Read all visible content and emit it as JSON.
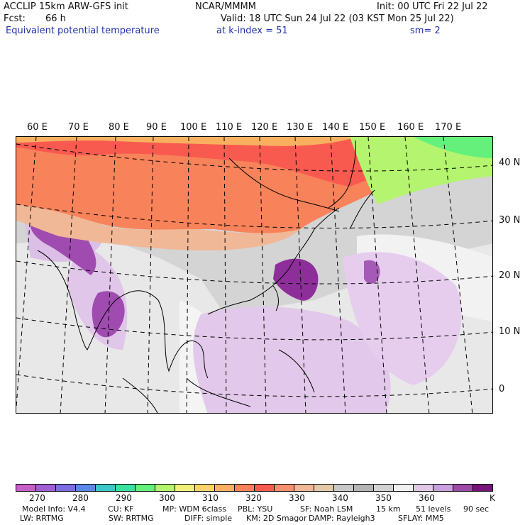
{
  "header": {
    "model": "ACCLIP 15km ARW-GFS init",
    "org": "NCAR/MMMM",
    "init": "Init: 00 UTC Fri 22 Jul 22",
    "fcst_label": "Fcst:",
    "fcst_value": "66 h",
    "valid": "Valid: 18 UTC Sun 24 Jul 22 (03 KST Mon 25 Jul 22)",
    "field": "Equivalent potential temperature",
    "level": "at k-index =  51",
    "smoothing": "sm= 2"
  },
  "map": {
    "lon_labels": [
      "60 E",
      "70 E",
      "80 E",
      "90 E",
      "100 E",
      "110 E",
      "120 E",
      "130 E",
      "140 E",
      "150 E",
      "160 E",
      "170 E"
    ],
    "lat_labels": [
      "40 N",
      "30 N",
      "20 N",
      "10 N",
      "0"
    ]
  },
  "colorbar": {
    "colors": [
      "#c85fc8",
      "#a05fd2",
      "#7b6ee0",
      "#5a88e8",
      "#3cc6c6",
      "#3ce0a0",
      "#64f07a",
      "#b4f46e",
      "#f0f07a",
      "#f8d26e",
      "#f8b060",
      "#f8825a",
      "#f85a50",
      "#f8906e",
      "#f0b896",
      "#e4c8aa",
      "#c8c8c8",
      "#b4b4b4",
      "#d2d2d2",
      "#f0f0f0",
      "#e0c8e6",
      "#c8a0dc",
      "#9b4aa8",
      "#78147a"
    ],
    "tick_labels": [
      "270",
      "280",
      "290",
      "300",
      "310",
      "320",
      "330",
      "340",
      "350",
      "360"
    ],
    "unit": "K"
  },
  "model_info": {
    "row1": [
      "Model Info: V4.4",
      "CU: KF",
      "MP: WDM 6class",
      "PBL: YSU",
      "SF: Noah LSM",
      "15 km",
      "51 levels",
      "90 sec"
    ],
    "row2": [
      "LW: RRTMG",
      "SW: RRTMG",
      "DIFF: simple",
      "KM: 2D Smagor",
      "DAMP: Rayleigh3",
      "SFLAY: MM5"
    ]
  }
}
